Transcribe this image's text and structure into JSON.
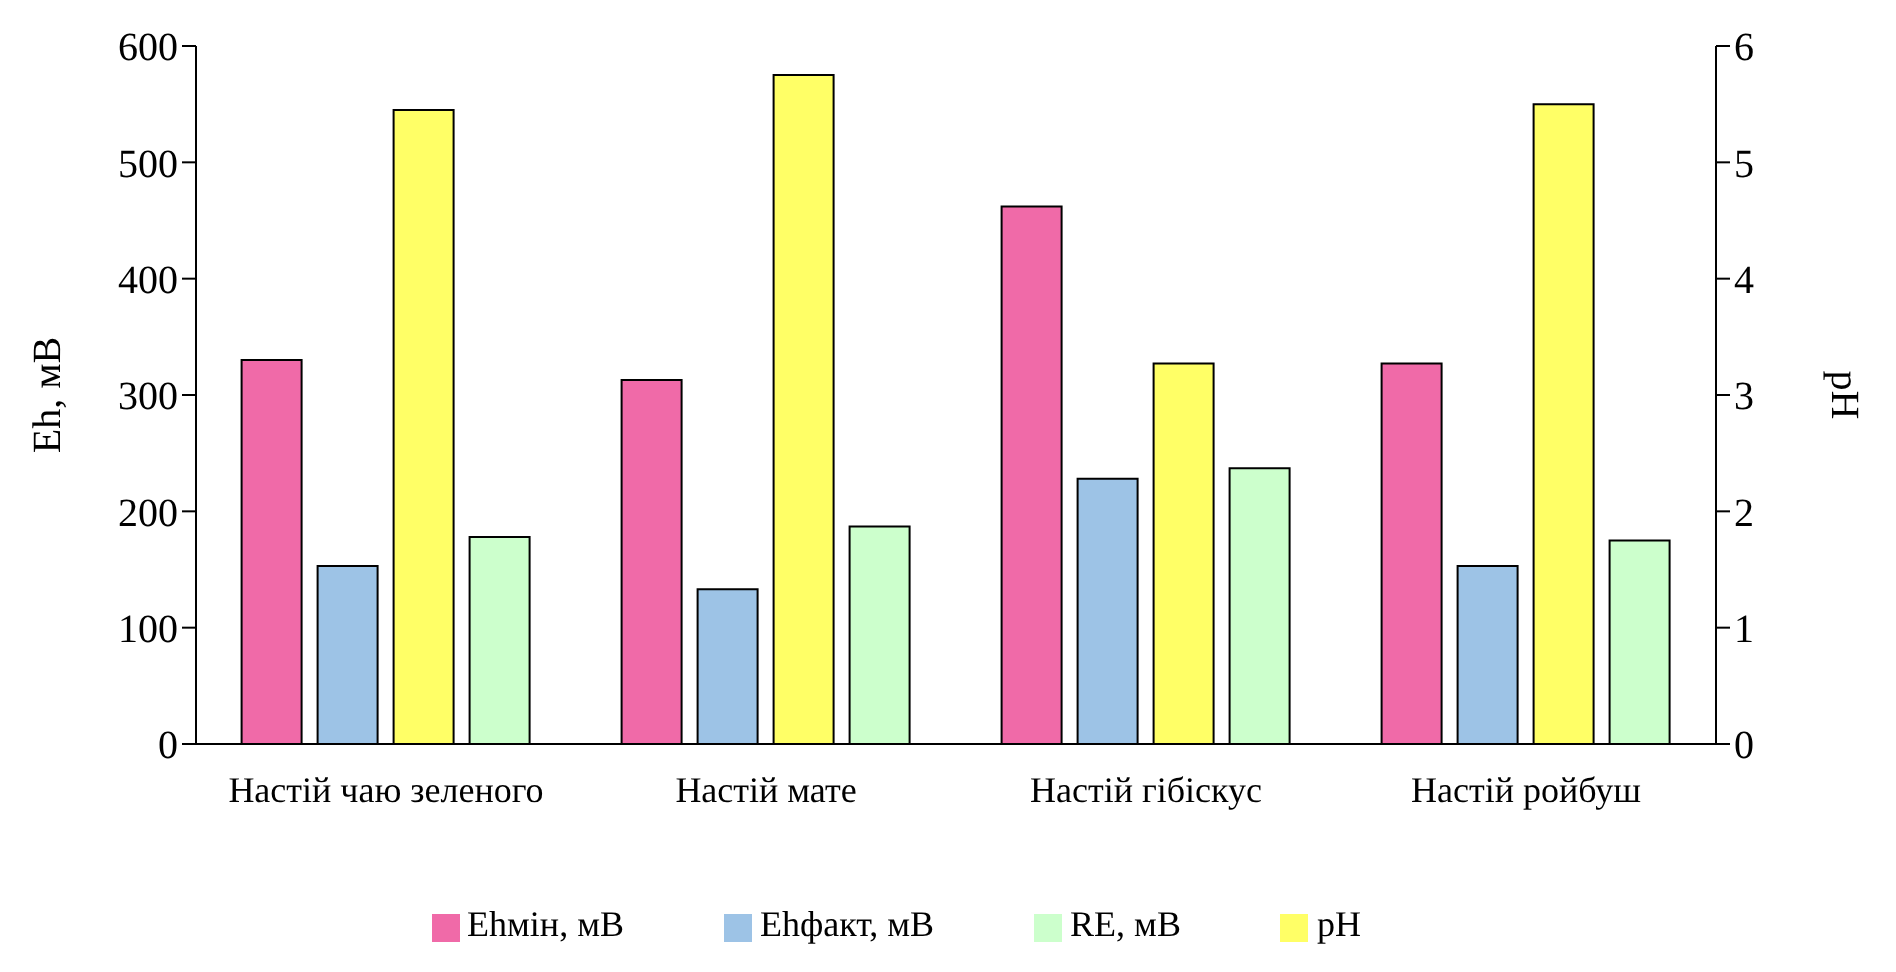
{
  "chart_data": {
    "type": "bar",
    "categories": [
      "Настій чаю зеленого",
      "Настій мате",
      "Настій гібіскус",
      "Настій ройбуш"
    ],
    "ylabel": "Eh, мВ",
    "y2label": "pH",
    "ylim": [
      0,
      600
    ],
    "yticks": [
      0,
      100,
      200,
      300,
      400,
      500,
      600
    ],
    "y2lim": [
      0,
      6
    ],
    "y2ticks": [
      0,
      1,
      2,
      3,
      4,
      5,
      6
    ],
    "grid": false,
    "legend": "bottom",
    "series": [
      {
        "name": "Ehмін, мВ",
        "color": "#f06aa8",
        "values": [
          330,
          313,
          462,
          327
        ]
      },
      {
        "name": "Ehфакт, мВ",
        "color": "#9dc3e6",
        "values": [
          153,
          133,
          228,
          153
        ]
      },
      {
        "name": "pH",
        "color": "#ffff66",
        "axis": "y2",
        "values": [
          5.45,
          5.75,
          3.27,
          5.5
        ]
      },
      {
        "name": "RE, мВ",
        "color": "#ccffcc",
        "values": [
          178,
          187,
          237,
          175
        ]
      }
    ]
  }
}
